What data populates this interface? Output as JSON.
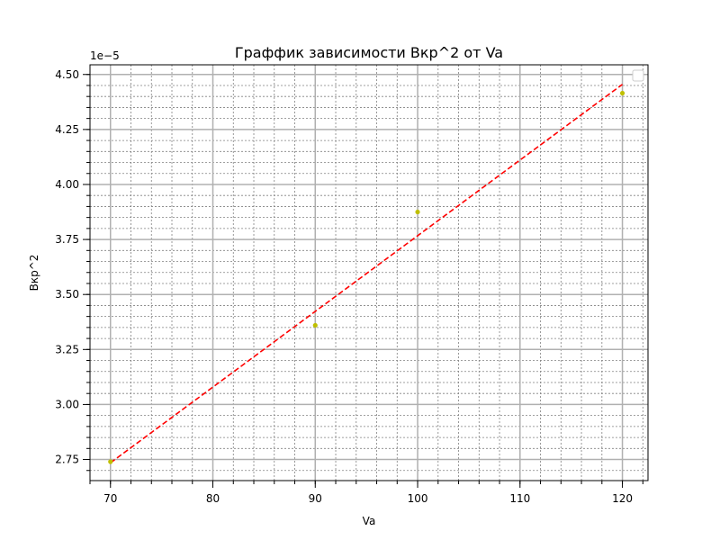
{
  "chart_data": {
    "type": "scatter",
    "title": "Граффик зависимости Вкр^2 от Va",
    "xlabel": "Va",
    "ylabel": "Вкр^2",
    "y_offset_label": "1e−5",
    "xlim": [
      68,
      122.5
    ],
    "ylim": [
      2.654,
      4.544
    ],
    "x_ticks": [
      70,
      80,
      90,
      100,
      110,
      120
    ],
    "x_tick_labels": [
      "70",
      "80",
      "90",
      "100",
      "110",
      "120"
    ],
    "x_minor_step": 2,
    "y_ticks": [
      2.75,
      3.0,
      3.25,
      3.5,
      3.75,
      4.0,
      4.25,
      4.5
    ],
    "y_tick_labels": [
      "2.75",
      "3.00",
      "3.25",
      "3.50",
      "3.75",
      "4.00",
      "4.25",
      "4.50"
    ],
    "y_minor_step": 0.05,
    "grid": true,
    "legend": {
      "placement": "top-right",
      "entries": []
    },
    "series": [
      {
        "kind": "scatter",
        "color": "#bfbf00",
        "x": [
          70,
          90,
          100,
          120
        ],
        "y": [
          2.74,
          3.36,
          3.875,
          4.415
        ]
      },
      {
        "kind": "line",
        "style": "dashed",
        "color": "#ff0000",
        "x": [
          70,
          120
        ],
        "y": [
          2.735,
          4.455
        ]
      }
    ]
  }
}
